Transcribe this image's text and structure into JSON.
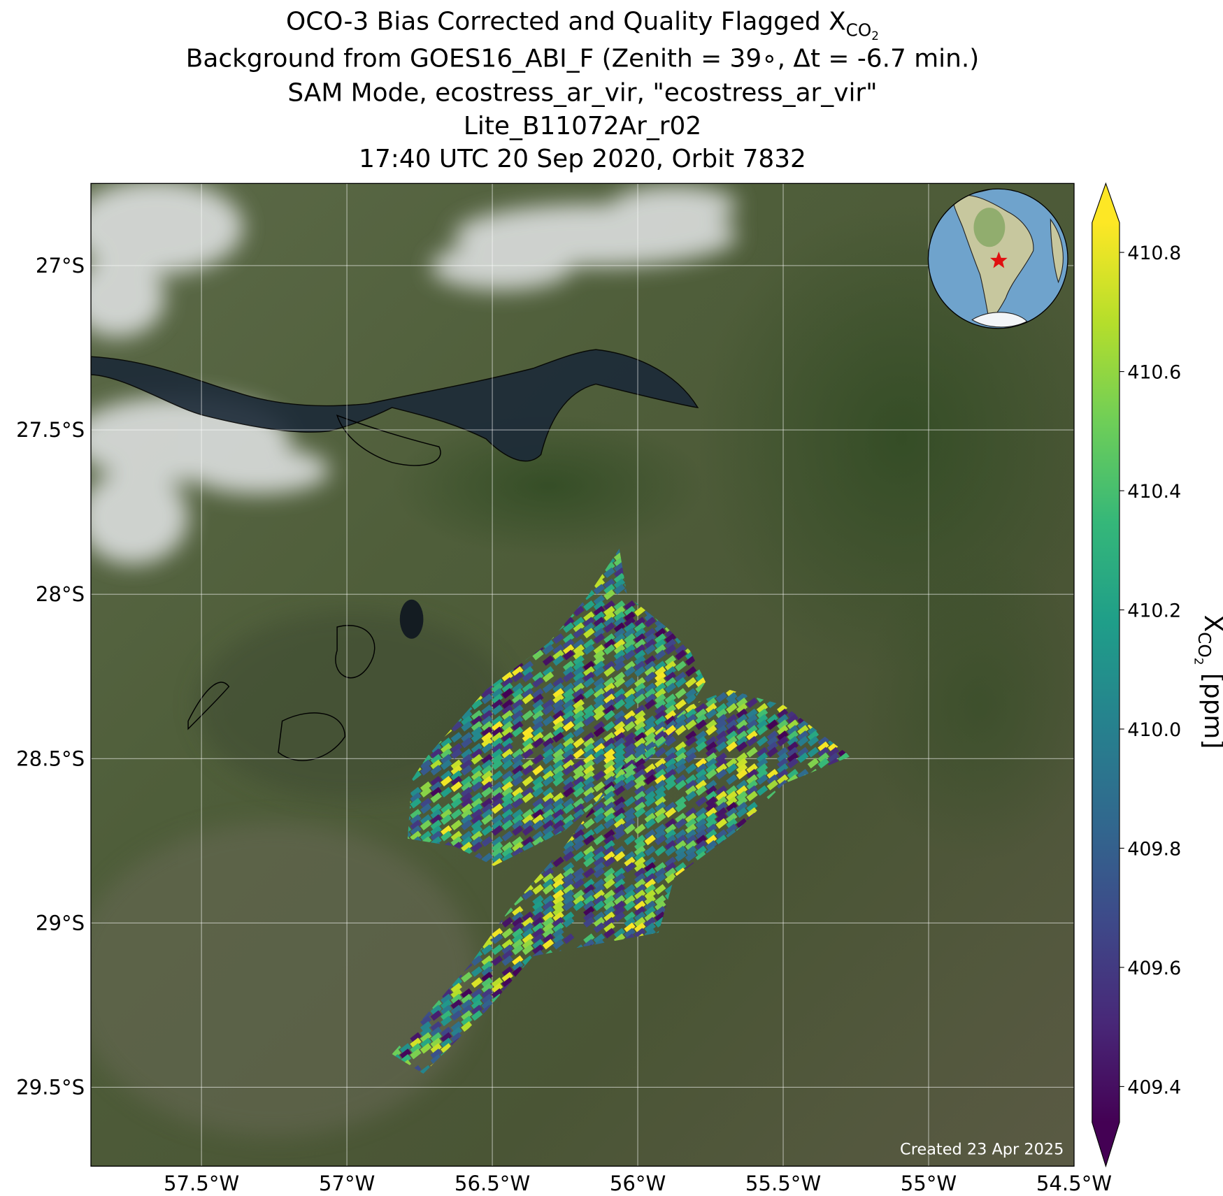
{
  "title": {
    "line1": {
      "text": "OCO-3 Bias Corrected and Quality Flagged X",
      "sub": "CO",
      "subsub": "2"
    },
    "line2": "Background from GOES16_ABI_F (Zenith = 39∘, Δt = -6.7 min.)",
    "line3": "SAM Mode, ecostress_ar_vir, \"ecostress_ar_vir\"",
    "line4": "Lite_B11072Ar_r02",
    "line5": "17:40 UTC 20 Sep 2020, Orbit 7832"
  },
  "map": {
    "xlim": [
      -57.88,
      -54.5
    ],
    "ylim": [
      -26.75,
      -29.74
    ],
    "xticks": [
      {
        "value": -57.5,
        "label": "57.5°W"
      },
      {
        "value": -57,
        "label": "57°W"
      },
      {
        "value": -56.5,
        "label": "56.5°W"
      },
      {
        "value": -56,
        "label": "56°W"
      },
      {
        "value": -55.5,
        "label": "55.5°W"
      },
      {
        "value": -55,
        "label": "55°W"
      },
      {
        "value": -54.5,
        "label": "54.5°W"
      }
    ],
    "yticks": [
      {
        "value": -27,
        "label": "27°S"
      },
      {
        "value": -27.5,
        "label": "27.5°S"
      },
      {
        "value": -28,
        "label": "28°S"
      },
      {
        "value": -28.5,
        "label": "28.5°S"
      },
      {
        "value": -29,
        "label": "29°S"
      },
      {
        "value": -29.5,
        "label": "29.5°S"
      }
    ],
    "grid": true,
    "note": "Created 23 Apr 2025"
  },
  "colorbar": {
    "colormap": "viridis",
    "clim": [
      409.34,
      410.85
    ],
    "ticks": [
      {
        "value": 409.4,
        "label": "409.4"
      },
      {
        "value": 409.6,
        "label": "409.6"
      },
      {
        "value": 409.8,
        "label": "409.8"
      },
      {
        "value": 410,
        "label": "410.0"
      },
      {
        "value": 410.2,
        "label": "410.2"
      },
      {
        "value": 410.4,
        "label": "410.4"
      },
      {
        "value": 410.6,
        "label": "410.6"
      },
      {
        "value": 410.8,
        "label": "410.8"
      }
    ],
    "label": {
      "text": "X",
      "sub": "CO",
      "subsub": "2",
      "unit": " [ppm]"
    }
  }
}
